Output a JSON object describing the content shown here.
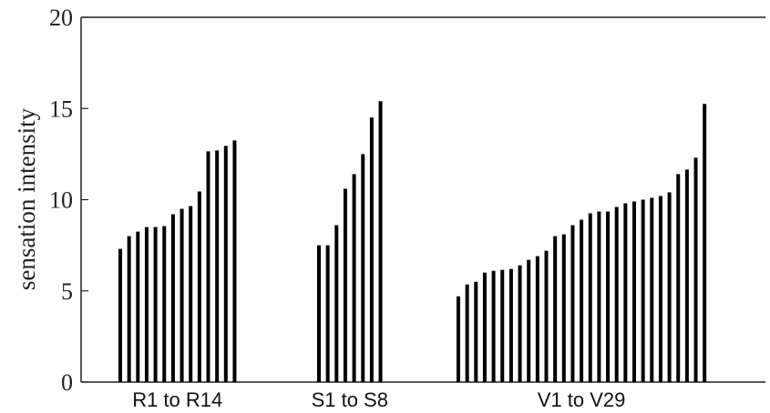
{
  "chart_data": {
    "type": "bar",
    "title": "",
    "xlabel": "",
    "ylabel": "sensation intensity",
    "ylim": [
      0,
      20
    ],
    "yticks": [
      0,
      5,
      10,
      15,
      20
    ],
    "grid": false,
    "bar_color": "#000000",
    "groups": [
      {
        "label": "R1 to R14",
        "values": [
          7.3,
          8.0,
          8.25,
          8.5,
          8.5,
          8.55,
          9.2,
          9.5,
          9.65,
          10.45,
          12.65,
          12.7,
          12.95,
          13.25
        ]
      },
      {
        "label": "S1 to S8",
        "values": [
          7.5,
          7.5,
          8.6,
          10.6,
          11.4,
          12.5,
          14.5,
          15.4
        ]
      },
      {
        "label": "V1 to V29",
        "values": [
          4.7,
          5.35,
          5.5,
          6.0,
          6.1,
          6.15,
          6.2,
          6.4,
          6.7,
          6.9,
          7.2,
          8.0,
          8.1,
          8.6,
          8.9,
          9.25,
          9.35,
          9.35,
          9.6,
          9.8,
          9.9,
          10.0,
          10.1,
          10.2,
          10.4,
          11.4,
          11.65,
          12.3,
          15.25
        ]
      }
    ]
  }
}
